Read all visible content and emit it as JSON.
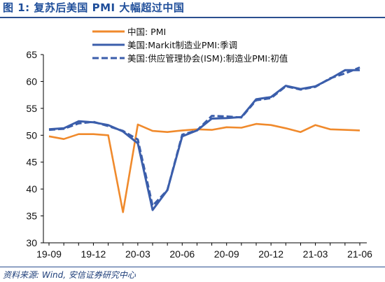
{
  "header": {
    "title": "图 1: 复苏后美国 PMI 大幅超过中国"
  },
  "footer": {
    "source": "资料来源: Wind, 安信证券研究中心"
  },
  "chart_data": {
    "type": "line",
    "title": "",
    "xlabel": "",
    "ylabel": "",
    "ylim": [
      30,
      65
    ],
    "yticks": [
      30,
      35,
      40,
      45,
      50,
      55,
      60,
      65
    ],
    "x": [
      "19-09",
      "19-10",
      "19-11",
      "19-12",
      "20-01",
      "20-02",
      "20-03",
      "20-04",
      "20-05",
      "20-06",
      "20-07",
      "20-08",
      "20-09",
      "20-10",
      "20-11",
      "20-12",
      "21-01",
      "21-02",
      "21-03",
      "21-04",
      "21-05",
      "21-06"
    ],
    "xtick_labels": [
      "19-09",
      "19-12",
      "20-03",
      "20-06",
      "20-09",
      "20-12",
      "21-03",
      "21-06"
    ],
    "grid": false,
    "legend_position": "top",
    "series": [
      {
        "name": "中国: PMI",
        "color": "#f08a2c",
        "style": "solid",
        "values": [
          49.8,
          49.3,
          50.2,
          50.2,
          50.0,
          35.7,
          52.0,
          50.8,
          50.6,
          50.9,
          51.1,
          51.0,
          51.5,
          51.4,
          52.1,
          51.9,
          51.3,
          50.6,
          51.9,
          51.1,
          51.0,
          50.9
        ]
      },
      {
        "name": "美国:Markit制造业PMI:季调",
        "color": "#3b5eab",
        "style": "solid",
        "values": [
          51.1,
          51.3,
          52.6,
          52.4,
          51.9,
          50.7,
          48.5,
          36.1,
          39.8,
          49.8,
          50.9,
          53.1,
          53.2,
          53.4,
          56.7,
          57.1,
          59.2,
          58.6,
          59.1,
          60.5,
          62.1,
          62.1
        ]
      },
      {
        "name": "美国:供应管理协会(ISM):制造业PMI:初值",
        "color": "#3b5eab",
        "style": "dashed",
        "values": [
          51.0,
          51.2,
          52.2,
          52.5,
          51.7,
          50.8,
          49.2,
          36.9,
          39.8,
          50.1,
          50.9,
          53.6,
          53.5,
          53.3,
          56.5,
          56.9,
          59.1,
          58.5,
          59.0,
          60.6,
          61.5,
          62.6
        ]
      }
    ]
  }
}
